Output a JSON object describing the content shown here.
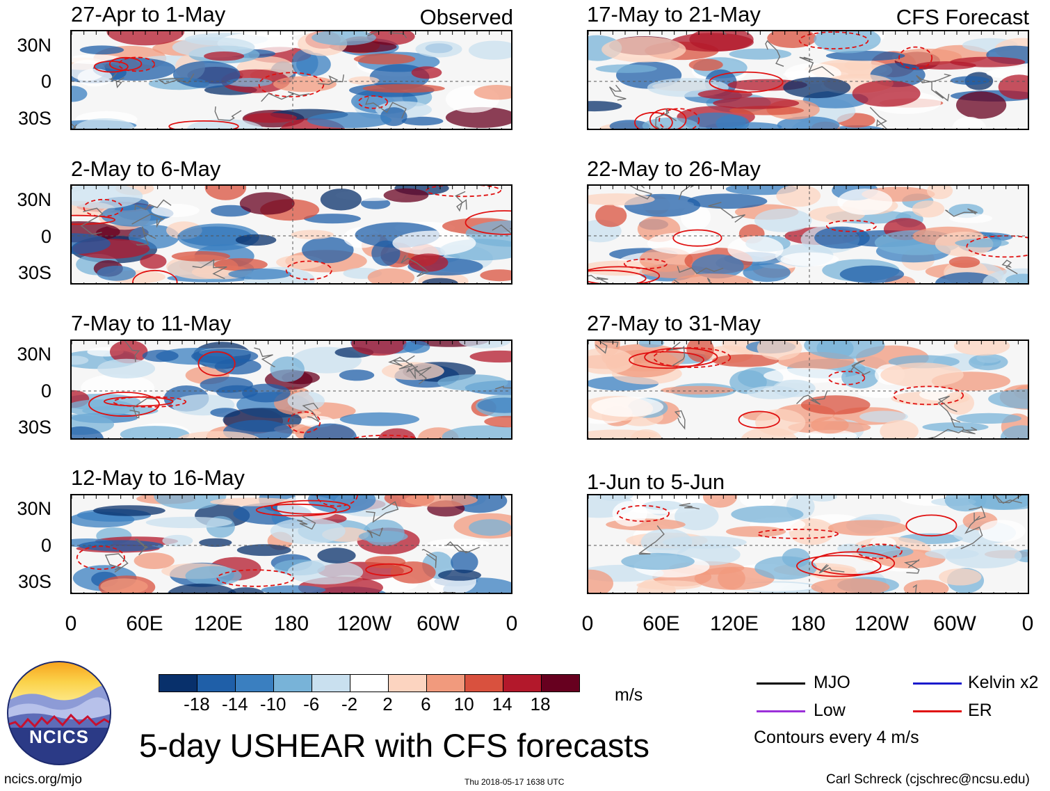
{
  "header": {
    "left_tag": "Observed",
    "right_tag": "CFS Forecast"
  },
  "panels": {
    "observed": [
      {
        "title": "27-Apr to 1-May"
      },
      {
        "title": "2-May to 6-May"
      },
      {
        "title": "7-May to 11-May"
      },
      {
        "title": "12-May to 16-May"
      }
    ],
    "forecast": [
      {
        "title": "17-May to 21-May"
      },
      {
        "title": "22-May to 26-May"
      },
      {
        "title": "27-May to 31-May"
      },
      {
        "title": "1-Jun to 5-Jun"
      }
    ]
  },
  "axes": {
    "y_ticks": [
      "30N",
      "0",
      "30S"
    ],
    "x_ticks": [
      "0",
      "60E",
      "120E",
      "180",
      "120W",
      "60W",
      "0"
    ]
  },
  "colorbar": {
    "tick_labels": [
      "-18",
      "-14",
      "-10",
      "-6",
      "-2",
      "2",
      "6",
      "10",
      "14",
      "18"
    ],
    "colors": [
      "#08306b",
      "#1f5fa8",
      "#3a7fc0",
      "#78b3d8",
      "#c9e0ef",
      "#ffffff",
      "#fcd4c0",
      "#f19a7d",
      "#d9513e",
      "#b3182b",
      "#67001f"
    ],
    "unit": "m/s"
  },
  "legend": {
    "items": [
      {
        "label": "MJO",
        "color": "#000000"
      },
      {
        "label": "Kelvin x2",
        "color": "#1a1acc"
      },
      {
        "label": "Low",
        "color": "#9b30d9"
      },
      {
        "label": "ER",
        "color": "#e01010"
      }
    ],
    "contour_note": "Contours every 4 m/s"
  },
  "footer": {
    "main_title": "5-day USHEAR with CFS forecasts",
    "logo_text": "NCICS",
    "url": "ncics.org/mjo",
    "timestamp": "Thu 2018-05-17 1638 UTC",
    "author": "Carl Schreck (cjschrec@ncsu.edu)"
  },
  "chart_data": {
    "type": "heatmap",
    "title": "5-day USHEAR with CFS forecasts",
    "variable": "USHEAR",
    "unit": "m/s",
    "colorbar_levels": [
      -18,
      -14,
      -10,
      -6,
      -2,
      2,
      6,
      10,
      14,
      18
    ],
    "xlim_deg_east": [
      0,
      360
    ],
    "ylim_deg": [
      -40,
      40
    ],
    "x_tick_labels": [
      "0",
      "60E",
      "120E",
      "180",
      "120W",
      "60W",
      "0"
    ],
    "y_tick_labels": [
      "30N",
      "0",
      "30S"
    ],
    "contour_interval": 4,
    "panels": [
      {
        "period": "27-Apr to 1-May",
        "source": "Observed"
      },
      {
        "period": "2-May to 6-May",
        "source": "Observed"
      },
      {
        "period": "7-May to 11-May",
        "source": "Observed"
      },
      {
        "period": "12-May to 16-May",
        "source": "Observed"
      },
      {
        "period": "17-May to 21-May",
        "source": "CFS Forecast"
      },
      {
        "period": "22-May to 26-May",
        "source": "CFS Forecast"
      },
      {
        "period": "27-May to 31-May",
        "source": "CFS Forecast"
      },
      {
        "period": "1-Jun to 5-Jun",
        "source": "CFS Forecast"
      }
    ]
  }
}
